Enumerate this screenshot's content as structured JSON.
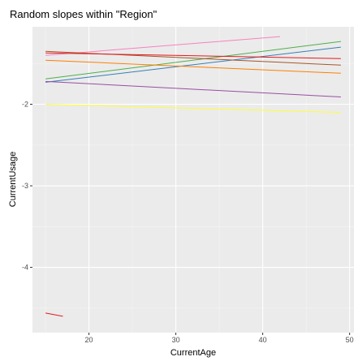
{
  "chart_data": {
    "type": "line",
    "title": "Random slopes within \"Region\"",
    "xlabel": "CurrentAge",
    "ylabel": "CurrentUsage",
    "xlim": [
      13.5,
      50.5
    ],
    "ylim": [
      -4.8,
      -1.05
    ],
    "x_ticks": [
      20,
      30,
      40,
      50
    ],
    "y_ticks": [
      -4,
      -3,
      -2
    ],
    "x_tick_labels": [
      "20",
      "30",
      "40",
      "50"
    ],
    "y_tick_labels": [
      "-4",
      "-3",
      "-2"
    ],
    "grid": true,
    "legend": "none",
    "panel_color": "#ebebeb",
    "series": [
      {
        "color": "#f781bf",
        "x": [
          15,
          42
        ],
        "y": [
          -1.4,
          -1.17
        ]
      },
      {
        "color": "#4daf4a",
        "x": [
          15,
          49
        ],
        "y": [
          -1.69,
          -1.23
        ]
      },
      {
        "color": "#377eb8",
        "x": [
          15,
          49
        ],
        "y": [
          -1.73,
          -1.3
        ]
      },
      {
        "color": "#a65628",
        "x": [
          15,
          49
        ],
        "y": [
          -1.35,
          -1.52
        ]
      },
      {
        "color": "#ff7f00",
        "x": [
          15,
          49
        ],
        "y": [
          -1.46,
          -1.62
        ]
      },
      {
        "color": "#e41a1c",
        "x": [
          15,
          49
        ],
        "y": [
          -1.37,
          -1.44
        ]
      },
      {
        "color": "#984ea3",
        "x": [
          15,
          49
        ],
        "y": [
          -1.72,
          -1.91
        ]
      },
      {
        "color": "#ffff33",
        "x": [
          15,
          49
        ],
        "y": [
          -2.0,
          -2.1
        ]
      },
      {
        "color": "#e41a1c",
        "x": [
          15,
          17
        ],
        "y": [
          -4.56,
          -4.6
        ]
      }
    ]
  }
}
